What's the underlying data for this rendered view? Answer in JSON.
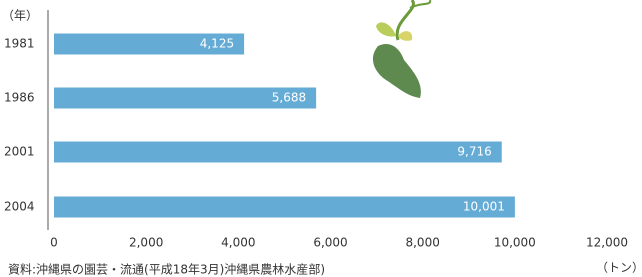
{
  "chart_data": {
    "type": "bar",
    "orientation": "horizontal",
    "y_label": "（年）",
    "x_label": "（トン）",
    "source": "資料:沖縄県の園芸・流通(平成18年3月)沖縄県農林水産部)",
    "categories": [
      "1981",
      "1986",
      "2001",
      "2004"
    ],
    "values": [
      4125,
      5688,
      9716,
      10001
    ],
    "value_labels": [
      "4,125",
      "5,688",
      "9,716",
      "10,001"
    ],
    "color": "#64abd5",
    "xlim": [
      0,
      12000
    ],
    "xticks": [
      0,
      {
        "value": 2000,
        "label": "2,000"
      },
      {
        "value": 4000,
        "label": "4,000"
      },
      {
        "value": 6000,
        "label": "6,000"
      },
      {
        "value": 8000,
        "label": "8,000"
      },
      {
        "value": 10000,
        "label": "10,000"
      },
      {
        "value": 12000,
        "label": "12,000"
      }
    ]
  }
}
